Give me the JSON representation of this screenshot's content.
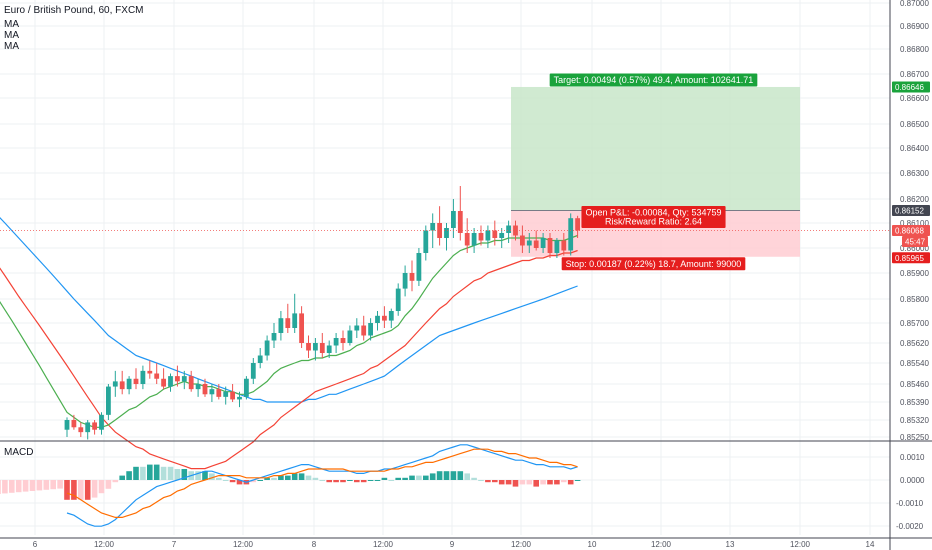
{
  "header": {
    "title": "Euro / British Pound, 60, FXCM",
    "indicators": [
      "MA",
      "MA",
      "MA"
    ],
    "macd_label": "MACD"
  },
  "colors": {
    "up": "#26a69a",
    "down": "#ef5350",
    "ma_fast": "#4caf50",
    "ma_mid": "#f44336",
    "ma_slow": "#2196f3",
    "target_zone": "#c8e6c9",
    "stop_zone": "#ffcdd2",
    "target_label": "#1aa33c",
    "stop_label": "#e51e1e",
    "grid": "#eef0f3"
  },
  "chart_data": {
    "type": "candlestick",
    "price_axis": {
      "ticks": [
        "0.87000",
        "0.86900",
        "0.86800",
        "0.86700",
        "0.86600",
        "0.86500",
        "0.86400",
        "0.86300",
        "0.86200",
        "0.86100",
        "0.86000",
        "0.85900",
        "0.85800",
        "0.85700",
        "0.85620",
        "0.85540",
        "0.85460",
        "0.85390",
        "0.85320",
        "0.85250"
      ]
    },
    "time_axis": {
      "ticks": [
        "6",
        "12:00",
        "7",
        "12:00",
        "8",
        "12:00",
        "9",
        "12:00",
        "10",
        "12:00",
        "13",
        "12:00",
        "14"
      ]
    },
    "price_badges": [
      {
        "value": "0.86646",
        "kind": "target"
      },
      {
        "value": "0.86152",
        "kind": "last"
      },
      {
        "value": "0.86068",
        "kind": "current"
      },
      {
        "value": "45:47",
        "kind": "countdown"
      },
      {
        "value": "0.85965",
        "kind": "stop"
      }
    ],
    "position": {
      "entry": 0.86152,
      "target": 0.86646,
      "stop": 0.85965,
      "target_label": "Target: 0.00494 (0.57%) 49.4, Amount: 102641.71",
      "stop_label": "Stop: 0.00187 (0.22%) 18.7, Amount: 99000",
      "pnl_label": "Open P&L: -0.00084, Qty: 534759",
      "ratio_label": "Risk/Reward Ratio: 2.64"
    },
    "candles": [
      [
        0.8528,
        0.8533,
        0.8525,
        0.8532
      ],
      [
        0.8532,
        0.8534,
        0.8528,
        0.8529
      ],
      [
        0.8529,
        0.8531,
        0.8525,
        0.8527
      ],
      [
        0.8527,
        0.8532,
        0.8524,
        0.8531
      ],
      [
        0.8531,
        0.8532,
        0.8526,
        0.8528
      ],
      [
        0.8528,
        0.8535,
        0.8526,
        0.8534
      ],
      [
        0.8534,
        0.8546,
        0.8532,
        0.8545
      ],
      [
        0.8545,
        0.8551,
        0.8541,
        0.8547
      ],
      [
        0.8547,
        0.8551,
        0.8542,
        0.8544
      ],
      [
        0.8544,
        0.8549,
        0.8542,
        0.8548
      ],
      [
        0.8548,
        0.8552,
        0.8544,
        0.8546
      ],
      [
        0.8546,
        0.8553,
        0.8544,
        0.8551
      ],
      [
        0.8551,
        0.8555,
        0.8548,
        0.855
      ],
      [
        0.855,
        0.8554,
        0.8546,
        0.8548
      ],
      [
        0.8548,
        0.8552,
        0.8544,
        0.8545
      ],
      [
        0.8545,
        0.855,
        0.8543,
        0.8549
      ],
      [
        0.8549,
        0.8553,
        0.8545,
        0.8547
      ],
      [
        0.8547,
        0.8551,
        0.8544,
        0.8549
      ],
      [
        0.8549,
        0.8551,
        0.8543,
        0.8544
      ],
      [
        0.8544,
        0.8548,
        0.8541,
        0.8546
      ],
      [
        0.8546,
        0.8548,
        0.8541,
        0.8542
      ],
      [
        0.8542,
        0.8546,
        0.8539,
        0.8544
      ],
      [
        0.8544,
        0.8546,
        0.854,
        0.8541
      ],
      [
        0.8541,
        0.8545,
        0.8538,
        0.8543
      ],
      [
        0.8543,
        0.8546,
        0.8539,
        0.854
      ],
      [
        0.854,
        0.8543,
        0.8537,
        0.8541
      ],
      [
        0.8541,
        0.8549,
        0.854,
        0.8548
      ],
      [
        0.8548,
        0.8556,
        0.8546,
        0.8554
      ],
      [
        0.8554,
        0.856,
        0.8552,
        0.8557
      ],
      [
        0.8557,
        0.8565,
        0.8555,
        0.8563
      ],
      [
        0.8563,
        0.857,
        0.856,
        0.8566
      ],
      [
        0.8566,
        0.8575,
        0.8563,
        0.8572
      ],
      [
        0.8572,
        0.8578,
        0.8566,
        0.8568
      ],
      [
        0.8568,
        0.8582,
        0.8566,
        0.8574
      ],
      [
        0.8574,
        0.8577,
        0.856,
        0.8562
      ],
      [
        0.8562,
        0.8565,
        0.8556,
        0.8559
      ],
      [
        0.8559,
        0.8564,
        0.8555,
        0.8562
      ],
      [
        0.8562,
        0.8566,
        0.8556,
        0.8558
      ],
      [
        0.8558,
        0.8563,
        0.8556,
        0.8561
      ],
      [
        0.8561,
        0.8566,
        0.8558,
        0.8564
      ],
      [
        0.8564,
        0.8567,
        0.8559,
        0.8562
      ],
      [
        0.8562,
        0.8569,
        0.8561,
        0.8567
      ],
      [
        0.8567,
        0.8572,
        0.8564,
        0.8569
      ],
      [
        0.8569,
        0.8573,
        0.8563,
        0.8565
      ],
      [
        0.8565,
        0.8572,
        0.8563,
        0.857
      ],
      [
        0.857,
        0.8575,
        0.8567,
        0.8573
      ],
      [
        0.8573,
        0.8577,
        0.8568,
        0.8571
      ],
      [
        0.8571,
        0.8576,
        0.8568,
        0.8575
      ],
      [
        0.8575,
        0.8586,
        0.8573,
        0.8584
      ],
      [
        0.8584,
        0.8593,
        0.8581,
        0.859
      ],
      [
        0.859,
        0.8595,
        0.8583,
        0.8587
      ],
      [
        0.8587,
        0.86,
        0.8585,
        0.8598
      ],
      [
        0.8598,
        0.8609,
        0.8595,
        0.8607
      ],
      [
        0.8607,
        0.8614,
        0.86,
        0.861
      ],
      [
        0.861,
        0.8617,
        0.8601,
        0.8604
      ],
      [
        0.8604,
        0.861,
        0.8599,
        0.8608
      ],
      [
        0.8608,
        0.862,
        0.8604,
        0.8615
      ],
      [
        0.8615,
        0.8625,
        0.8603,
        0.8606
      ],
      [
        0.8606,
        0.8612,
        0.8598,
        0.8601
      ],
      [
        0.8601,
        0.8608,
        0.8598,
        0.8606
      ],
      [
        0.8606,
        0.8609,
        0.8601,
        0.8603
      ],
      [
        0.8603,
        0.8609,
        0.86,
        0.8607
      ],
      [
        0.8607,
        0.8611,
        0.8601,
        0.8604
      ],
      [
        0.8604,
        0.8608,
        0.86,
        0.8606
      ],
      [
        0.8606,
        0.8611,
        0.8602,
        0.8609
      ],
      [
        0.8609,
        0.8611,
        0.8603,
        0.8605
      ],
      [
        0.8605,
        0.8609,
        0.8598,
        0.8601
      ],
      [
        0.8601,
        0.8606,
        0.8598,
        0.8603
      ],
      [
        0.8603,
        0.8607,
        0.8599,
        0.86
      ],
      [
        0.86,
        0.8606,
        0.8598,
        0.8604
      ],
      [
        0.8604,
        0.8606,
        0.8596,
        0.8598
      ],
      [
        0.8598,
        0.8604,
        0.8596,
        0.8603
      ],
      [
        0.8603,
        0.8606,
        0.8597,
        0.8599
      ],
      [
        0.8599,
        0.8614,
        0.8597,
        0.8612
      ],
      [
        0.8612,
        0.8613,
        0.8604,
        0.8607
      ]
    ],
    "ma_fast": [
      0.8535,
      0.8533,
      0.8531,
      0.853,
      0.8529,
      0.8529,
      0.853,
      0.8532,
      0.8534,
      0.8536,
      0.8537,
      0.8539,
      0.8541,
      0.8542,
      0.8544,
      0.8545,
      0.8546,
      0.8547,
      0.8546,
      0.8546,
      0.8545,
      0.8545,
      0.8544,
      0.8543,
      0.8543,
      0.8542,
      0.8542,
      0.8543,
      0.8545,
      0.8547,
      0.855,
      0.8552,
      0.8553,
      0.8554,
      0.8555,
      0.8555,
      0.8556,
      0.8556,
      0.8557,
      0.8557,
      0.8558,
      0.8559,
      0.8561,
      0.8562,
      0.8564,
      0.8565,
      0.8566,
      0.8567,
      0.8569,
      0.8573,
      0.8576,
      0.858,
      0.8584,
      0.8588,
      0.8591,
      0.8594,
      0.8597,
      0.8599,
      0.86,
      0.8601,
      0.8602,
      0.8602,
      0.8603,
      0.8603,
      0.8604,
      0.8604,
      0.8604,
      0.8604,
      0.8604,
      0.8604,
      0.8603,
      0.8603,
      0.8603,
      0.8604,
      0.8605
    ],
    "ma_mid": [
      0.8553,
      0.8549,
      0.8545,
      0.8541,
      0.8537,
      0.8533,
      0.853,
      0.8527,
      0.8525,
      0.8523,
      0.8521,
      0.852,
      0.8518,
      0.8517,
      0.8516,
      0.8515,
      0.8514,
      0.8513,
      0.8512,
      0.8512,
      0.8512,
      0.8513,
      0.8514,
      0.8515,
      0.8517,
      0.8519,
      0.8521,
      0.8523,
      0.8526,
      0.8528,
      0.853,
      0.8533,
      0.8535,
      0.8537,
      0.8539,
      0.8541,
      0.8543,
      0.8544,
      0.8545,
      0.8546,
      0.8547,
      0.8548,
      0.8549,
      0.855,
      0.8552,
      0.8553,
      0.8555,
      0.8557,
      0.8559,
      0.8561,
      0.8564,
      0.8567,
      0.857,
      0.8573,
      0.8576,
      0.8578,
      0.8581,
      0.8583,
      0.8585,
      0.8587,
      0.8588,
      0.859,
      0.8591,
      0.8592,
      0.8593,
      0.8594,
      0.8595,
      0.8595,
      0.8596,
      0.8596,
      0.8597,
      0.8597,
      0.8598,
      0.8598,
      0.8599
    ],
    "ma_slow": [
      0.8583,
      0.858,
      0.8577,
      0.8574,
      0.8571,
      0.8568,
      0.8565,
      0.8563,
      0.8561,
      0.8559,
      0.8557,
      0.8556,
      0.8555,
      0.8554,
      0.8553,
      0.8552,
      0.8551,
      0.855,
      0.8549,
      0.8548,
      0.8547,
      0.8546,
      0.8545,
      0.8544,
      0.8543,
      0.8542,
      0.8541,
      0.854,
      0.854,
      0.8539,
      0.8539,
      0.8539,
      0.8539,
      0.8539,
      0.8539,
      0.854,
      0.854,
      0.8541,
      0.8542,
      0.8542,
      0.8543,
      0.8544,
      0.8545,
      0.8546,
      0.8547,
      0.8548,
      0.8549,
      0.8551,
      0.8553,
      0.8555,
      0.8557,
      0.8559,
      0.8561,
      0.8563,
      0.8565,
      0.8566,
      0.8567,
      0.8568,
      0.8569,
      0.857,
      0.8571,
      0.8572,
      0.8573,
      0.8574,
      0.8575,
      0.8576,
      0.8577,
      0.8578,
      0.8579,
      0.858,
      0.8581,
      0.8582,
      0.8583,
      0.8584,
      0.8585
    ],
    "macd_axis": {
      "ticks": [
        "0.0010",
        "0.0000",
        "-0.0010",
        "-0.0020"
      ]
    },
    "macd": [
      -0.0015,
      -0.0016,
      -0.0018,
      -0.002,
      -0.0021,
      -0.0021,
      -0.002,
      -0.0018,
      -0.0015,
      -0.0012,
      -0.0009,
      -0.0007,
      -0.0005,
      -0.0003,
      -0.0002,
      -0.0001,
      0.0,
      0.0001,
      0.0002,
      0.0003,
      0.0004,
      0.0004,
      0.0003,
      0.0002,
      0.0001,
      0.0,
      -0.0001,
      0.0,
      0.0001,
      0.0002,
      0.0003,
      0.0004,
      0.0005,
      0.0006,
      0.0007,
      0.0007,
      0.0006,
      0.0005,
      0.0004,
      0.0004,
      0.0004,
      0.0004,
      0.0003,
      0.0003,
      0.0004,
      0.0004,
      0.0005,
      0.0005,
      0.0006,
      0.0007,
      0.0008,
      0.0009,
      0.001,
      0.0011,
      0.0013,
      0.0014,
      0.0015,
      0.0016,
      0.0016,
      0.0015,
      0.0014,
      0.0013,
      0.0012,
      0.0011,
      0.001,
      0.0009,
      0.0009,
      0.0008,
      0.0007,
      0.0007,
      0.0006,
      0.0006,
      0.0006,
      0.0005,
      0.0006
    ],
    "signal": [
      -0.0006,
      -0.0007,
      -0.0009,
      -0.0011,
      -0.0013,
      -0.0015,
      -0.0016,
      -0.0017,
      -0.0017,
      -0.0016,
      -0.0015,
      -0.0013,
      -0.0012,
      -0.001,
      -0.0008,
      -0.0007,
      -0.0005,
      -0.0004,
      -0.0002,
      -0.0001,
      0.0,
      0.0001,
      0.0002,
      0.0002,
      0.0002,
      0.0002,
      0.0001,
      0.0001,
      0.0001,
      0.0001,
      0.0002,
      0.0002,
      0.0003,
      0.0003,
      0.0004,
      0.0005,
      0.0005,
      0.0005,
      0.0005,
      0.0005,
      0.0005,
      0.0004,
      0.0004,
      0.0004,
      0.0004,
      0.0004,
      0.0004,
      0.0005,
      0.0005,
      0.0006,
      0.0006,
      0.0007,
      0.0008,
      0.0008,
      0.0009,
      0.001,
      0.0011,
      0.0012,
      0.0013,
      0.0014,
      0.0014,
      0.0014,
      0.0013,
      0.0013,
      0.0012,
      0.0012,
      0.0011,
      0.001,
      0.001,
      0.0009,
      0.0008,
      0.0008,
      0.0007,
      0.0007,
      0.0006
    ]
  }
}
